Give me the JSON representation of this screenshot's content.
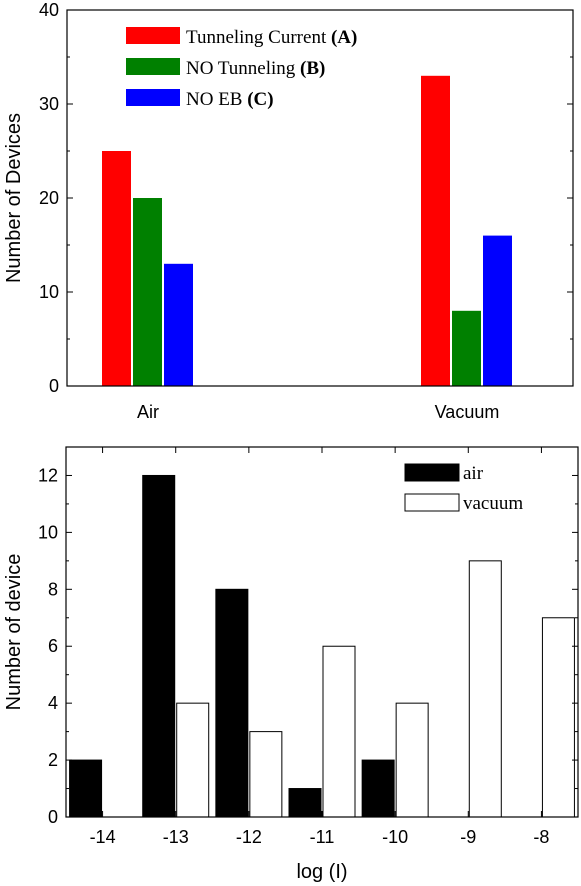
{
  "chart_data": [
    {
      "type": "bar",
      "categories": [
        "Air",
        "Vacuum"
      ],
      "series": [
        {
          "name": "Tunneling Current",
          "tag": "(A)",
          "values": [
            25,
            33
          ],
          "color": "#ff0000"
        },
        {
          "name": "NO Tunneling",
          "tag": "(B)",
          "values": [
            20,
            8
          ],
          "color": "#008000"
        },
        {
          "name": "NO EB",
          "tag": "(C)",
          "values": [
            13,
            16
          ],
          "color": "#0000ff"
        }
      ],
      "ylabel": "Number of Devices",
      "xlabel": "",
      "ylim": [
        0,
        40
      ],
      "yticks": [
        "0",
        "10",
        "20",
        "30",
        "40"
      ],
      "legend_position": "top-left"
    },
    {
      "type": "bar",
      "categories": [
        "-14",
        "-13",
        "-12",
        "-11",
        "-10",
        "-9",
        "-8"
      ],
      "series": [
        {
          "name": "air",
          "values": [
            2,
            12,
            8,
            1,
            2,
            0,
            0
          ],
          "color": "#000000"
        },
        {
          "name": "vacuum",
          "values": [
            0,
            4,
            3,
            6,
            4,
            9,
            7
          ],
          "color": "#ffffff"
        }
      ],
      "xlabel": "log (I)",
      "ylabel": "Number of device",
      "ylim": [
        0,
        13
      ],
      "yticks": [
        "0",
        "2",
        "4",
        "6",
        "8",
        "10",
        "12"
      ],
      "legend_position": "top-right"
    }
  ]
}
